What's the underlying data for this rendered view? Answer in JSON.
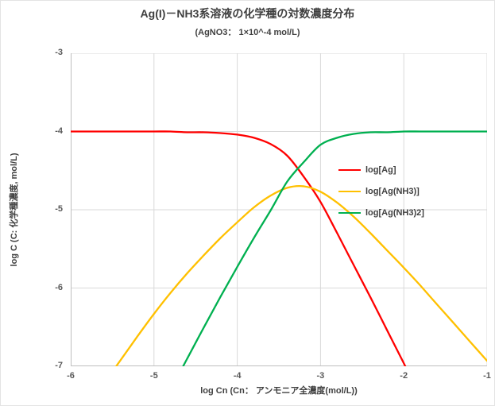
{
  "chart_data": {
    "type": "line",
    "title": "Ag(I)－NH3系溶液の化学種の対数濃度分布",
    "subtitle": "(AgNO3： 1×10^-4 mol/L)",
    "xlabel": "log Cn (Cn： アンモニア全濃度(mol/L))",
    "ylabel": "log C (C: 化学種濃度, mol/L)",
    "xlim": [
      -6,
      -1
    ],
    "ylim": [
      -7,
      -3
    ],
    "xticks": [
      -6,
      -5,
      -4,
      -3,
      -2,
      -1
    ],
    "yticks": [
      -3,
      -4,
      -5,
      -6,
      -7
    ],
    "grid": true,
    "legend_position": "inside-right",
    "gridline_color": "#D9D9D9",
    "axis_line_color": "#BFBFBF",
    "series": [
      {
        "name": "log[Ag]",
        "color": "#FF0000",
        "points": [
          [
            -6.0,
            -4.0
          ],
          [
            -5.8,
            -4.0
          ],
          [
            -5.6,
            -4.0
          ],
          [
            -5.4,
            -4.0
          ],
          [
            -5.2,
            -4.0
          ],
          [
            -5.0,
            -4.0
          ],
          [
            -4.8,
            -4.0
          ],
          [
            -4.6,
            -4.01
          ],
          [
            -4.4,
            -4.01
          ],
          [
            -4.2,
            -4.02
          ],
          [
            -4.0,
            -4.04
          ],
          [
            -3.8,
            -4.08
          ],
          [
            -3.6,
            -4.16
          ],
          [
            -3.4,
            -4.31
          ],
          [
            -3.2,
            -4.58
          ],
          [
            -3.0,
            -4.9
          ],
          [
            -2.8,
            -5.3
          ],
          [
            -2.6,
            -5.71
          ],
          [
            -2.4,
            -6.12
          ],
          [
            -2.2,
            -6.54
          ],
          [
            -2.0,
            -6.96
          ],
          [
            -1.95,
            -7.08
          ]
        ]
      },
      {
        "name": "log[Ag(NH3)]",
        "color": "#FFC000",
        "points": [
          [
            -5.5,
            -7.07
          ],
          [
            -5.4,
            -6.92
          ],
          [
            -5.2,
            -6.62
          ],
          [
            -5.0,
            -6.33
          ],
          [
            -4.8,
            -6.06
          ],
          [
            -4.6,
            -5.81
          ],
          [
            -4.4,
            -5.58
          ],
          [
            -4.2,
            -5.36
          ],
          [
            -4.0,
            -5.16
          ],
          [
            -3.8,
            -4.97
          ],
          [
            -3.6,
            -4.82
          ],
          [
            -3.4,
            -4.72
          ],
          [
            -3.2,
            -4.7
          ],
          [
            -3.0,
            -4.77
          ],
          [
            -2.8,
            -4.91
          ],
          [
            -2.6,
            -5.09
          ],
          [
            -2.4,
            -5.3
          ],
          [
            -2.2,
            -5.52
          ],
          [
            -2.0,
            -5.74
          ],
          [
            -1.8,
            -5.97
          ],
          [
            -1.6,
            -6.21
          ],
          [
            -1.4,
            -6.45
          ],
          [
            -1.2,
            -6.69
          ],
          [
            -1.0,
            -6.93
          ]
        ]
      },
      {
        "name": "log[Ag(NH3)2]",
        "color": "#00B050",
        "points": [
          [
            -4.7,
            -7.1
          ],
          [
            -4.6,
            -6.9
          ],
          [
            -4.4,
            -6.5
          ],
          [
            -4.2,
            -6.11
          ],
          [
            -4.0,
            -5.73
          ],
          [
            -3.8,
            -5.36
          ],
          [
            -3.6,
            -5.01
          ],
          [
            -3.4,
            -4.64
          ],
          [
            -3.2,
            -4.39
          ],
          [
            -3.0,
            -4.17
          ],
          [
            -2.8,
            -4.08
          ],
          [
            -2.6,
            -4.03
          ],
          [
            -2.4,
            -4.01
          ],
          [
            -2.2,
            -4.01
          ],
          [
            -2.0,
            -4.0
          ],
          [
            -1.8,
            -4.0
          ],
          [
            -1.6,
            -4.0
          ],
          [
            -1.4,
            -4.0
          ],
          [
            -1.2,
            -4.0
          ],
          [
            -1.0,
            -4.0
          ]
        ]
      }
    ]
  }
}
